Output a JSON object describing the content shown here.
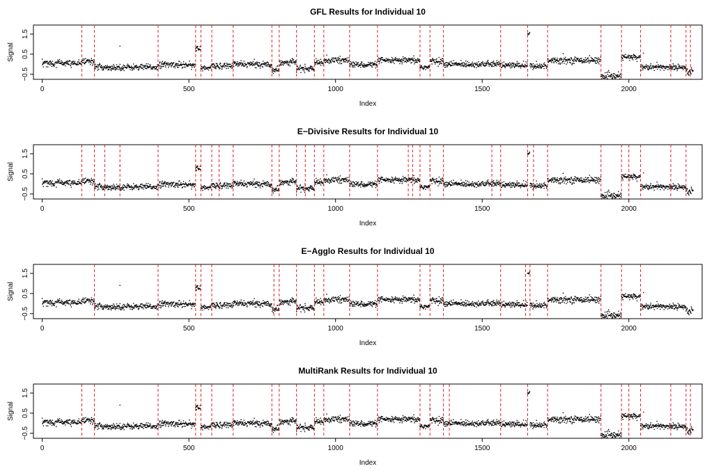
{
  "chart_data": [
    {
      "type": "scatter",
      "title": "GFL Results for Individual 10",
      "xlabel": "Index",
      "ylabel": "Signal",
      "xlim": [
        -30,
        2250
      ],
      "ylim": [
        -0.75,
        1.95
      ],
      "xticks": [
        0,
        500,
        1000,
        1500,
        2000
      ],
      "yticks": [
        -0.5,
        0.5,
        1.5
      ],
      "changepoints": [
        135,
        178,
        395,
        523,
        541,
        578,
        651,
        783,
        808,
        867,
        928,
        960,
        1048,
        1143,
        1288,
        1322,
        1368,
        1563,
        1655,
        1723,
        1905,
        1975,
        2040,
        2143,
        2195,
        2210
      ],
      "changepoint_color": "#e41a1c"
    },
    {
      "type": "scatter",
      "title": "E−Divisive Results for Individual 10",
      "xlabel": "Index",
      "ylabel": "Signal",
      "xlim": [
        -30,
        2250
      ],
      "ylim": [
        -0.75,
        1.95
      ],
      "xticks": [
        0,
        500,
        1000,
        1500,
        2000
      ],
      "yticks": [
        -0.5,
        0.5,
        1.5
      ],
      "changepoints": [
        135,
        178,
        213,
        265,
        395,
        523,
        541,
        578,
        603,
        651,
        783,
        808,
        867,
        897,
        928,
        960,
        1048,
        1143,
        1248,
        1263,
        1288,
        1322,
        1368,
        1533,
        1563,
        1655,
        1675,
        1723,
        1905,
        1975,
        2000,
        2040,
        2143,
        2195
      ],
      "changepoint_color": "#e41a1c"
    },
    {
      "type": "scatter",
      "title": "E−Agglo Results for Individual 10",
      "xlabel": "Index",
      "ylabel": "Signal",
      "xlim": [
        -30,
        2250
      ],
      "ylim": [
        -0.75,
        1.95
      ],
      "xticks": [
        0,
        500,
        1000,
        1500,
        2000
      ],
      "yticks": [
        -0.5,
        0.5,
        1.5
      ],
      "changepoints": [
        178,
        395,
        523,
        541,
        578,
        790,
        808,
        867,
        928,
        960,
        1048,
        1143,
        1288,
        1322,
        1368,
        1563,
        1648,
        1663,
        1723,
        1905,
        1975,
        2040
      ],
      "changepoint_color": "#e41a1c"
    },
    {
      "type": "scatter",
      "title": "MultiRank Results for Individual 10",
      "xlabel": "Index",
      "ylabel": "Signal",
      "xlim": [
        -30,
        2250
      ],
      "ylim": [
        -0.75,
        1.95
      ],
      "xticks": [
        0,
        500,
        1000,
        1500,
        2000
      ],
      "yticks": [
        -0.5,
        0.5,
        1.5
      ],
      "changepoints": [
        135,
        178,
        395,
        523,
        541,
        578,
        651,
        783,
        808,
        867,
        928,
        960,
        1048,
        1143,
        1288,
        1322,
        1368,
        1388,
        1563,
        1655,
        1723,
        1905,
        1975,
        2000,
        2040,
        2143,
        2195,
        2210
      ],
      "changepoint_color": "#e41a1c"
    }
  ],
  "signal": {
    "n": 2220,
    "segments": [
      {
        "start": 0,
        "end": 135,
        "mean": 0.05
      },
      {
        "start": 135,
        "end": 178,
        "mean": 0.15
      },
      {
        "start": 178,
        "end": 395,
        "mean": -0.15
      },
      {
        "start": 395,
        "end": 523,
        "mean": -0.02
      },
      {
        "start": 523,
        "end": 541,
        "mean": 0.75
      },
      {
        "start": 541,
        "end": 578,
        "mean": -0.2
      },
      {
        "start": 578,
        "end": 651,
        "mean": -0.08
      },
      {
        "start": 651,
        "end": 783,
        "mean": 0.0
      },
      {
        "start": 783,
        "end": 808,
        "mean": -0.28
      },
      {
        "start": 808,
        "end": 867,
        "mean": 0.1
      },
      {
        "start": 867,
        "end": 928,
        "mean": -0.22
      },
      {
        "start": 928,
        "end": 960,
        "mean": 0.05
      },
      {
        "start": 960,
        "end": 1048,
        "mean": 0.2
      },
      {
        "start": 1048,
        "end": 1143,
        "mean": -0.02
      },
      {
        "start": 1143,
        "end": 1288,
        "mean": 0.18
      },
      {
        "start": 1288,
        "end": 1322,
        "mean": -0.15
      },
      {
        "start": 1322,
        "end": 1368,
        "mean": 0.15
      },
      {
        "start": 1368,
        "end": 1563,
        "mean": 0.0
      },
      {
        "start": 1563,
        "end": 1655,
        "mean": -0.05
      },
      {
        "start": 1655,
        "end": 1663,
        "mean": 1.5
      },
      {
        "start": 1663,
        "end": 1723,
        "mean": -0.1
      },
      {
        "start": 1723,
        "end": 1905,
        "mean": 0.2
      },
      {
        "start": 1905,
        "end": 1975,
        "mean": -0.6
      },
      {
        "start": 1975,
        "end": 2040,
        "mean": 0.35
      },
      {
        "start": 2040,
        "end": 2195,
        "mean": -0.15
      },
      {
        "start": 2195,
        "end": 2220,
        "mean": -0.35
      }
    ],
    "outliers": [
      {
        "x": 265,
        "y": 0.9
      },
      {
        "x": 1322,
        "y": 0.75
      },
      {
        "x": 2050,
        "y": 0.55
      }
    ]
  }
}
